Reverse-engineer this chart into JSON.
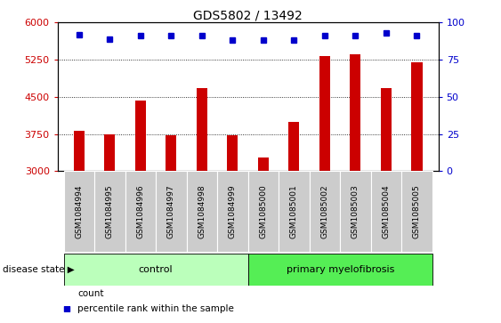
{
  "title": "GDS5802 / 13492",
  "samples": [
    "GSM1084994",
    "GSM1084995",
    "GSM1084996",
    "GSM1084997",
    "GSM1084998",
    "GSM1084999",
    "GSM1085000",
    "GSM1085001",
    "GSM1085002",
    "GSM1085003",
    "GSM1085004",
    "GSM1085005"
  ],
  "counts": [
    3820,
    3750,
    4430,
    3730,
    4680,
    3730,
    3280,
    4000,
    5320,
    5360,
    4680,
    5200
  ],
  "percentiles": [
    92,
    89,
    91,
    91,
    91,
    88,
    88,
    88,
    91,
    91,
    93,
    91
  ],
  "ylim_left": [
    3000,
    6000
  ],
  "ylim_right": [
    0,
    100
  ],
  "yticks_left": [
    3000,
    3750,
    4500,
    5250,
    6000
  ],
  "yticks_right": [
    0,
    25,
    50,
    75,
    100
  ],
  "bar_color": "#cc0000",
  "scatter_color": "#0000cc",
  "control_count": 6,
  "control_label": "control",
  "disease_label": "primary myelofibrosis",
  "disease_state_label": "disease state",
  "control_bg": "#bbffbb",
  "disease_bg": "#55ee55",
  "tick_bg": "#cccccc",
  "legend_count_label": "count",
  "legend_percentile_label": "percentile rank within the sample",
  "grid_color": "#000000",
  "bar_width": 0.35
}
